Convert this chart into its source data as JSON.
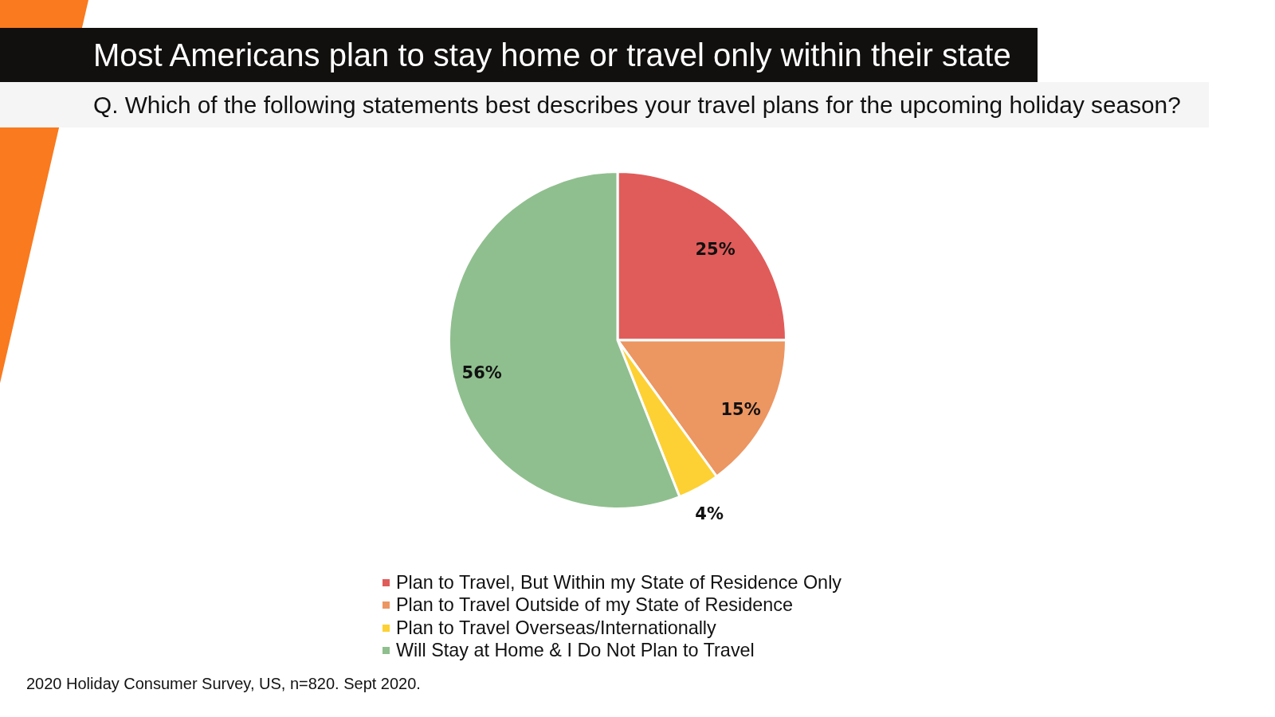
{
  "chart_data": {
    "type": "pie",
    "title": "Most Americans plan to stay home or travel only within their state",
    "subtitle": "Q. Which of the following statements best describes your travel plans for the upcoming holiday season?",
    "categories": [
      "Plan to Travel, But Within my State of Residence Only",
      "Plan to Travel Outside of my State of Residence",
      "Plan to Travel Overseas/Internationally",
      "Will Stay at Home & I Do Not Plan to Travel"
    ],
    "values": [
      25,
      15,
      4,
      56
    ],
    "value_labels": [
      "25%",
      "15%",
      "4%",
      "56%"
    ],
    "colors": [
      "#e05c5a",
      "#ec9662",
      "#fdd133",
      "#8fbf8e"
    ],
    "legend": "bottom",
    "annotations": [
      "2020 Holiday Consumer Survey, US, n=820. Sept 2020."
    ]
  }
}
